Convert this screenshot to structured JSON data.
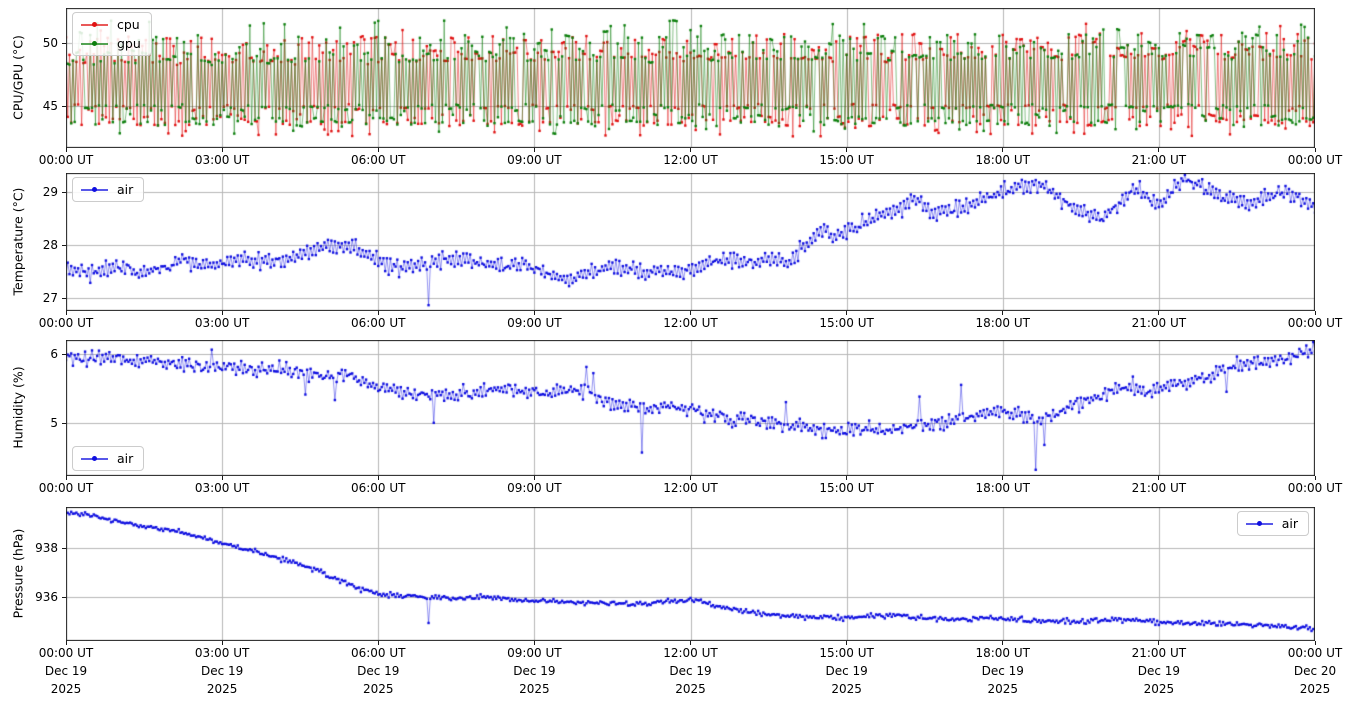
{
  "figure": {
    "background": "#ffffff",
    "grid_color": "#b6b6b6",
    "frame_color": "#1a1a1a"
  },
  "x_axis": {
    "tick_hours": [
      0,
      3,
      6,
      9,
      12,
      15,
      18,
      21,
      24
    ],
    "tick_labels": [
      "00:00 UT",
      "03:00 UT",
      "06:00 UT",
      "09:00 UT",
      "12:00 UT",
      "15:00 UT",
      "18:00 UT",
      "21:00 UT",
      "00:00 UT"
    ],
    "date_line1": [
      "Dec 19",
      "Dec 19",
      "Dec 19",
      "Dec 19",
      "Dec 19",
      "Dec 19",
      "Dec 19",
      "Dec 19",
      "Dec 20"
    ],
    "date_line2": [
      "2025",
      "2025",
      "2025",
      "2025",
      "2025",
      "2025",
      "2025",
      "2025",
      "2025"
    ]
  },
  "chart_data": [
    {
      "type": "line",
      "name": "cpu_gpu_temperature",
      "ylabel": "CPU/GPU (°C)",
      "xlim": [
        0,
        24
      ],
      "ylim": [
        41.7,
        52.8
      ],
      "yticks": [
        45,
        50
      ],
      "grid": true,
      "legend_position": "upper-left",
      "x_unit": "hours UT from 2025-12-19 00:00 to 2025-12-20 00:00",
      "series": [
        {
          "name": "cpu",
          "color": "#e01212",
          "line_alpha": 0.5,
          "gen": "square",
          "n": 721,
          "seed": 7,
          "high_levels": [
            48.4,
            48.6,
            48.6,
            49.0,
            49.3,
            49.8,
            50.2
          ],
          "low_levels": [
            45.0,
            45.0,
            44.8,
            44.2,
            43.9,
            43.7,
            43.6
          ],
          "jitter": 0.18,
          "hold_p": 0.13,
          "peak_p": 0.05,
          "peak": [
            50.4,
            51.6
          ],
          "dip_p": 0.11,
          "dip": [
            42.6,
            43.5
          ],
          "high_trend": 0.5
        },
        {
          "name": "gpu",
          "color": "#0d7f0d",
          "line_alpha": 0.5,
          "gen": "square",
          "n": 721,
          "seed": 13,
          "high_levels": [
            48.4,
            48.6,
            48.6,
            49.0,
            49.3,
            49.8,
            50.2
          ],
          "low_levels": [
            45.0,
            45.0,
            44.8,
            44.2,
            43.9,
            43.7,
            43.6
          ],
          "jitter": 0.18,
          "hold_p": 0.13,
          "peak_p": 0.12,
          "peak": [
            50.4,
            51.9
          ],
          "dip_p": 0.05,
          "dip": [
            42.8,
            43.5
          ],
          "high_trend": 0.5
        }
      ]
    },
    {
      "type": "line",
      "name": "air_temperature",
      "ylabel": "Temperature (°C)",
      "xlim": [
        0,
        24
      ],
      "ylim": [
        26.75,
        29.36
      ],
      "yticks": [
        27,
        28,
        29
      ],
      "grid": true,
      "legend_position": "upper-left",
      "x_unit": "hours UT from 2025-12-19 00:00 to 2025-12-20 00:00",
      "series": [
        {
          "name": "air",
          "color": "#0f0fe0",
          "line_alpha": 0.45,
          "gen": "anchors",
          "n": 721,
          "seed": 21,
          "sigma": 0.05,
          "zig": 0.07,
          "anchors": [
            [
              0,
              27.55
            ],
            [
              0.4,
              27.48
            ],
            [
              0.8,
              27.55
            ],
            [
              1.2,
              27.6
            ],
            [
              1.35,
              27.4
            ],
            [
              1.8,
              27.55
            ],
            [
              2.2,
              27.72
            ],
            [
              2.6,
              27.65
            ],
            [
              3.0,
              27.65
            ],
            [
              3.4,
              27.73
            ],
            [
              3.8,
              27.68
            ],
            [
              4.2,
              27.72
            ],
            [
              4.6,
              27.85
            ],
            [
              5.0,
              27.95
            ],
            [
              5.3,
              28.02
            ],
            [
              5.6,
              27.92
            ],
            [
              6.0,
              27.7
            ],
            [
              6.4,
              27.55
            ],
            [
              6.8,
              27.6
            ],
            [
              7.2,
              27.72
            ],
            [
              7.6,
              27.72
            ],
            [
              8.0,
              27.63
            ],
            [
              8.4,
              27.6
            ],
            [
              8.8,
              27.63
            ],
            [
              9.2,
              27.5
            ],
            [
              9.6,
              27.3
            ],
            [
              10.0,
              27.45
            ],
            [
              10.4,
              27.58
            ],
            [
              10.8,
              27.55
            ],
            [
              11.2,
              27.47
            ],
            [
              11.6,
              27.5
            ],
            [
              12.0,
              27.52
            ],
            [
              12.4,
              27.7
            ],
            [
              12.8,
              27.72
            ],
            [
              13.2,
              27.68
            ],
            [
              13.6,
              27.7
            ],
            [
              13.9,
              27.68
            ],
            [
              14.2,
              28.0
            ],
            [
              14.5,
              28.3
            ],
            [
              14.8,
              28.15
            ],
            [
              15.2,
              28.35
            ],
            [
              15.6,
              28.55
            ],
            [
              16.0,
              28.7
            ],
            [
              16.35,
              28.85
            ],
            [
              16.7,
              28.6
            ],
            [
              17.0,
              28.65
            ],
            [
              17.5,
              28.8
            ],
            [
              18.0,
              29.0
            ],
            [
              18.4,
              29.1
            ],
            [
              18.75,
              29.15
            ],
            [
              19.3,
              28.75
            ],
            [
              19.9,
              28.46
            ],
            [
              20.3,
              28.85
            ],
            [
              20.6,
              29.08
            ],
            [
              21.0,
              28.75
            ],
            [
              21.45,
              29.25
            ],
            [
              21.8,
              29.1
            ],
            [
              22.2,
              28.9
            ],
            [
              22.6,
              28.8
            ],
            [
              23.0,
              28.85
            ],
            [
              23.4,
              29.0
            ],
            [
              23.7,
              28.9
            ],
            [
              24,
              28.72
            ]
          ],
          "spikes": [
            [
              6.95,
              26.86
            ]
          ]
        }
      ]
    },
    {
      "type": "line",
      "name": "air_humidity",
      "ylabel": "Humidity (%)",
      "xlim": [
        0,
        24
      ],
      "ylim": [
        4.23,
        6.2
      ],
      "yticks": [
        5,
        6
      ],
      "grid": true,
      "legend_position": "lower-left",
      "x_unit": "hours UT from 2025-12-19 00:00 to 2025-12-20 00:00",
      "series": [
        {
          "name": "air",
          "color": "#0f0fe0",
          "line_alpha": 0.45,
          "gen": "anchors",
          "n": 721,
          "seed": 33,
          "sigma": 0.04,
          "zig": 0.035,
          "anchors": [
            [
              0,
              5.95
            ],
            [
              0.3,
              5.9
            ],
            [
              0.6,
              5.93
            ],
            [
              1.0,
              5.95
            ],
            [
              1.3,
              5.88
            ],
            [
              1.6,
              5.92
            ],
            [
              2.0,
              5.85
            ],
            [
              2.4,
              5.82
            ],
            [
              2.8,
              5.82
            ],
            [
              3.2,
              5.78
            ],
            [
              3.6,
              5.75
            ],
            [
              4.0,
              5.78
            ],
            [
              4.4,
              5.73
            ],
            [
              4.8,
              5.7
            ],
            [
              5.2,
              5.7
            ],
            [
              5.6,
              5.65
            ],
            [
              6.0,
              5.5
            ],
            [
              6.4,
              5.45
            ],
            [
              6.8,
              5.42
            ],
            [
              7.2,
              5.4
            ],
            [
              7.6,
              5.42
            ],
            [
              8.0,
              5.45
            ],
            [
              8.4,
              5.5
            ],
            [
              8.8,
              5.45
            ],
            [
              9.2,
              5.42
            ],
            [
              9.6,
              5.48
            ],
            [
              10.0,
              5.45
            ],
            [
              10.4,
              5.3
            ],
            [
              10.8,
              5.25
            ],
            [
              11.2,
              5.2
            ],
            [
              11.6,
              5.25
            ],
            [
              12.0,
              5.2
            ],
            [
              12.4,
              5.12
            ],
            [
              12.8,
              5.05
            ],
            [
              13.2,
              5.05
            ],
            [
              13.6,
              5.0
            ],
            [
              14.0,
              4.95
            ],
            [
              14.4,
              4.92
            ],
            [
              14.8,
              4.9
            ],
            [
              15.2,
              4.92
            ],
            [
              15.6,
              4.88
            ],
            [
              16.0,
              4.9
            ],
            [
              16.4,
              4.95
            ],
            [
              16.8,
              5.0
            ],
            [
              17.2,
              5.08
            ],
            [
              17.6,
              5.12
            ],
            [
              18.0,
              5.15
            ],
            [
              18.4,
              5.1
            ],
            [
              18.8,
              5.05
            ],
            [
              19.2,
              5.2
            ],
            [
              19.6,
              5.3
            ],
            [
              20.0,
              5.45
            ],
            [
              20.4,
              5.5
            ],
            [
              20.8,
              5.48
            ],
            [
              21.2,
              5.55
            ],
            [
              21.6,
              5.6
            ],
            [
              22.0,
              5.72
            ],
            [
              22.4,
              5.8
            ],
            [
              22.8,
              5.85
            ],
            [
              23.2,
              5.9
            ],
            [
              23.6,
              5.95
            ],
            [
              24,
              6.08
            ]
          ],
          "spikes": [
            [
              2.8,
              6.06
            ],
            [
              4.6,
              5.41
            ],
            [
              5.15,
              5.33
            ],
            [
              7.05,
              5.0
            ],
            [
              10.0,
              5.81
            ],
            [
              10.12,
              5.72
            ],
            [
              11.05,
              4.57
            ],
            [
              13.75,
              4.87
            ],
            [
              13.85,
              5.3
            ],
            [
              16.4,
              5.38
            ],
            [
              17.2,
              5.55
            ],
            [
              18.65,
              4.32
            ],
            [
              18.8,
              4.68
            ],
            [
              20.5,
              5.67
            ],
            [
              22.3,
              5.45
            ],
            [
              23.95,
              6.17
            ]
          ]
        }
      ]
    },
    {
      "type": "line",
      "name": "air_pressure",
      "ylabel": "Pressure (hPa)",
      "xlim": [
        0,
        24
      ],
      "ylim": [
        934.2,
        939.7
      ],
      "yticks": [
        936,
        938
      ],
      "grid": true,
      "legend_position": "upper-right",
      "x_unit": "hours UT from 2025-12-19 00:00 to 2025-12-20 00:00",
      "series": [
        {
          "name": "air",
          "color": "#0f0fe0",
          "line_alpha": 0.45,
          "gen": "anchors",
          "n": 721,
          "seed": 44,
          "sigma": 0.045,
          "zig": 0.015,
          "anchors": [
            [
              0,
              939.45
            ],
            [
              0.4,
              939.4
            ],
            [
              1.0,
              939.1
            ],
            [
              1.5,
              938.9
            ],
            [
              2.0,
              938.75
            ],
            [
              2.5,
              938.5
            ],
            [
              3.0,
              938.2
            ],
            [
              3.3,
              938.05
            ],
            [
              3.7,
              937.85
            ],
            [
              4.1,
              937.6
            ],
            [
              4.5,
              937.35
            ],
            [
              4.9,
              937.05
            ],
            [
              5.3,
              936.65
            ],
            [
              5.7,
              936.3
            ],
            [
              6.0,
              936.15
            ],
            [
              6.5,
              936.05
            ],
            [
              7.0,
              935.98
            ],
            [
              7.5,
              935.95
            ],
            [
              8.0,
              936.0
            ],
            [
              8.5,
              935.92
            ],
            [
              9.0,
              935.85
            ],
            [
              9.5,
              935.82
            ],
            [
              10.0,
              935.78
            ],
            [
              10.5,
              935.75
            ],
            [
              11.0,
              935.72
            ],
            [
              11.5,
              935.8
            ],
            [
              11.9,
              935.88
            ],
            [
              12.2,
              935.84
            ],
            [
              12.6,
              935.6
            ],
            [
              13.0,
              935.45
            ],
            [
              13.4,
              935.3
            ],
            [
              13.8,
              935.22
            ],
            [
              14.2,
              935.2
            ],
            [
              14.6,
              935.18
            ],
            [
              15.0,
              935.15
            ],
            [
              15.4,
              935.22
            ],
            [
              15.8,
              935.28
            ],
            [
              16.2,
              935.2
            ],
            [
              16.6,
              935.12
            ],
            [
              17.0,
              935.08
            ],
            [
              17.4,
              935.12
            ],
            [
              17.8,
              935.15
            ],
            [
              18.2,
              935.1
            ],
            [
              18.6,
              935.05
            ],
            [
              19.0,
              935.02
            ],
            [
              19.4,
              935.0
            ],
            [
              19.8,
              935.05
            ],
            [
              20.2,
              935.08
            ],
            [
              20.6,
              935.02
            ],
            [
              21.0,
              934.98
            ],
            [
              21.5,
              934.95
            ],
            [
              22.0,
              934.92
            ],
            [
              22.5,
              934.9
            ],
            [
              23.0,
              934.85
            ],
            [
              23.5,
              934.78
            ],
            [
              24,
              934.68
            ]
          ],
          "spikes": [
            [
              6.95,
              934.94
            ]
          ]
        }
      ]
    }
  ]
}
